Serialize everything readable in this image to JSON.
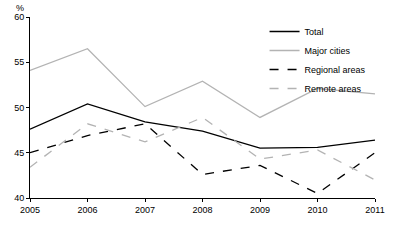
{
  "chart_data": {
    "type": "line",
    "y_label": "%",
    "x": [
      2005,
      2006,
      2007,
      2008,
      2009,
      2010,
      2011
    ],
    "xlim": [
      2005,
      2011
    ],
    "xticks": [
      2005,
      2006,
      2007,
      2008,
      2009,
      2010,
      2011
    ],
    "ylim": [
      40,
      60
    ],
    "yticks": [
      40,
      45,
      50,
      55,
      60
    ],
    "grid": false,
    "legend": "top-right",
    "series": [
      {
        "name": "Total",
        "color": "#000000",
        "line_style": "solid",
        "values": [
          47.6,
          50.4,
          48.4,
          47.4,
          45.5,
          45.6,
          46.4
        ]
      },
      {
        "name": "Major cities",
        "color": "#b3b3b3",
        "line_style": "solid",
        "values": [
          54.1,
          56.5,
          50.1,
          52.9,
          48.9,
          52.1,
          51.5
        ]
      },
      {
        "name": "Regional areas",
        "color": "#000000",
        "line_style": "dash",
        "values": [
          45.0,
          46.9,
          48.2,
          42.6,
          43.6,
          40.5,
          45.0
        ]
      },
      {
        "name": "Remote areas",
        "color": "#b3b3b3",
        "line_style": "dash",
        "values": [
          43.4,
          48.2,
          46.2,
          48.9,
          44.3,
          45.3,
          42.0
        ]
      }
    ]
  }
}
